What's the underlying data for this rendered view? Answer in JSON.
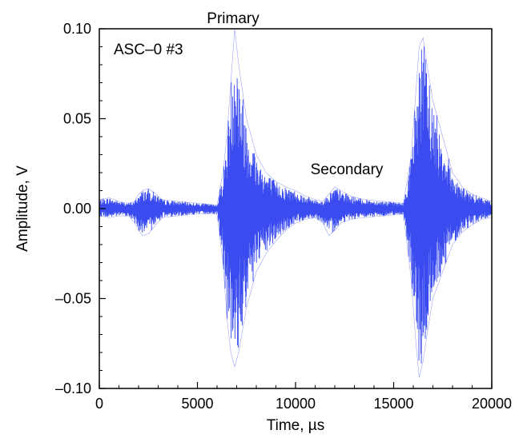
{
  "chart_data": {
    "type": "line",
    "xlabel": "Time, µs",
    "ylabel": "Amplitude, V",
    "xlim": [
      0,
      20000
    ],
    "ylim": [
      -0.1,
      0.1
    ],
    "x_ticks": [
      0,
      5000,
      10000,
      15000,
      20000
    ],
    "x_tick_labels": [
      "0",
      "5000",
      "10000",
      "15000",
      "20000"
    ],
    "y_ticks": [
      0.1,
      0.05,
      0,
      -0.05,
      -0.1
    ],
    "y_tick_labels": [
      "0.10",
      "0.05",
      "0.00",
      "–0.05",
      "–0.10"
    ],
    "grid": false,
    "series": [
      {
        "color": "#3a4cf0",
        "x": [
          0,
          500,
          1000,
          1500,
          1800,
          2000,
          2200,
          2500,
          2800,
          3200,
          4000,
          5000,
          6000,
          6300,
          6500,
          6700,
          6900,
          7100,
          7500,
          8000,
          8500,
          9000,
          9500,
          10000,
          10500,
          11000,
          11400,
          11700,
          12000,
          12300,
          12800,
          13500,
          14500,
          15500,
          15900,
          16100,
          16300,
          16500,
          16700,
          17000,
          17500,
          18000,
          18500,
          19000,
          19500,
          20000
        ],
        "y_upper": [
          0.005,
          0.006,
          0.004,
          0.003,
          0.004,
          0.008,
          0.01,
          0.011,
          0.009,
          0.005,
          0.004,
          0.003,
          0.002,
          0.02,
          0.04,
          0.07,
          0.1,
          0.08,
          0.05,
          0.03,
          0.02,
          0.015,
          0.012,
          0.01,
          0.007,
          0.005,
          0.004,
          0.008,
          0.012,
          0.01,
          0.007,
          0.005,
          0.004,
          0.003,
          0.03,
          0.06,
          0.09,
          0.095,
          0.08,
          0.06,
          0.04,
          0.02,
          0.012,
          0.008,
          0.006,
          0.004
        ],
        "y_lower": [
          -0.004,
          -0.005,
          -0.004,
          -0.004,
          -0.008,
          -0.012,
          -0.015,
          -0.014,
          -0.01,
          -0.005,
          -0.004,
          -0.003,
          -0.003,
          -0.03,
          -0.06,
          -0.08,
          -0.088,
          -0.08,
          -0.055,
          -0.035,
          -0.025,
          -0.018,
          -0.012,
          -0.008,
          -0.006,
          -0.005,
          -0.008,
          -0.015,
          -0.012,
          -0.008,
          -0.006,
          -0.005,
          -0.004,
          -0.003,
          -0.04,
          -0.07,
          -0.094,
          -0.085,
          -0.07,
          -0.05,
          -0.035,
          -0.02,
          -0.013,
          -0.009,
          -0.006,
          -0.005
        ]
      }
    ]
  },
  "annotations": {
    "primary": "Primary",
    "secondary": "Secondary",
    "specimen": "ASC–0 #3"
  }
}
